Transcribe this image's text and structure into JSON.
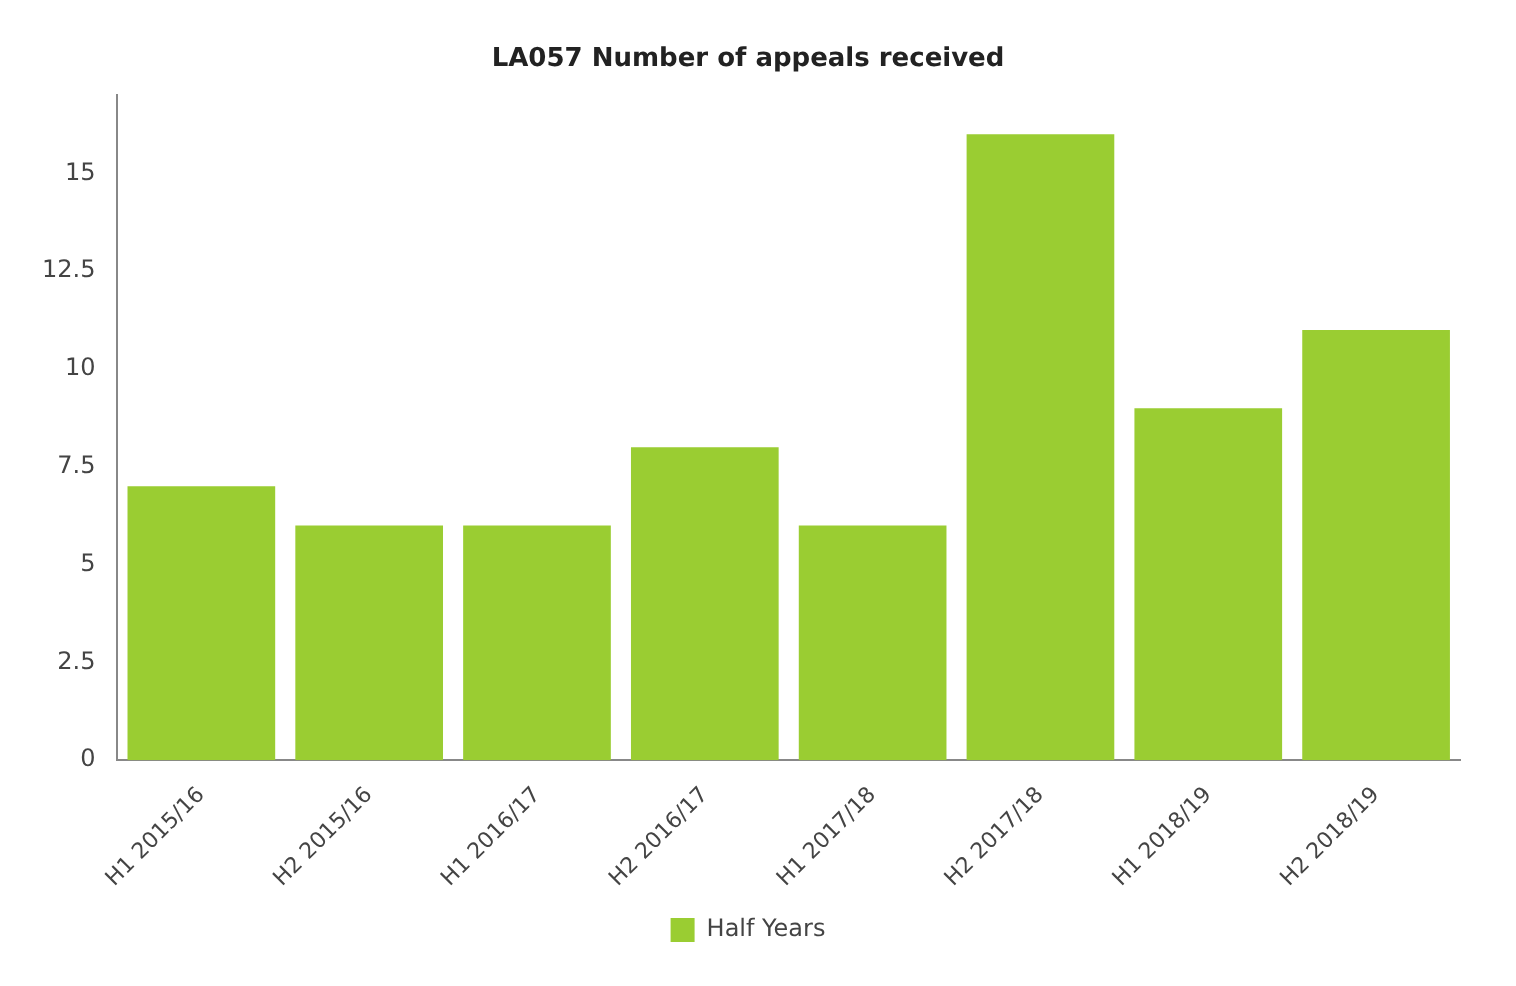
{
  "chart_data": {
    "type": "bar",
    "title": "LA057 Number of appeals received",
    "categories": [
      "H1 2015/16",
      "H2 2015/16",
      "H1 2016/17",
      "H2 2016/17",
      "H1 2017/18",
      "H2 2017/18",
      "H1 2018/19",
      "H2 2018/19"
    ],
    "series": [
      {
        "name": "Half Years",
        "color": "#9acd32",
        "values": [
          7,
          6,
          6,
          8,
          6,
          16,
          9,
          11
        ]
      }
    ],
    "ylim": [
      0,
      17
    ],
    "yticks": [
      0,
      2.5,
      5,
      7.5,
      10,
      12.5,
      15
    ],
    "grid": false,
    "legend": "bottom"
  }
}
